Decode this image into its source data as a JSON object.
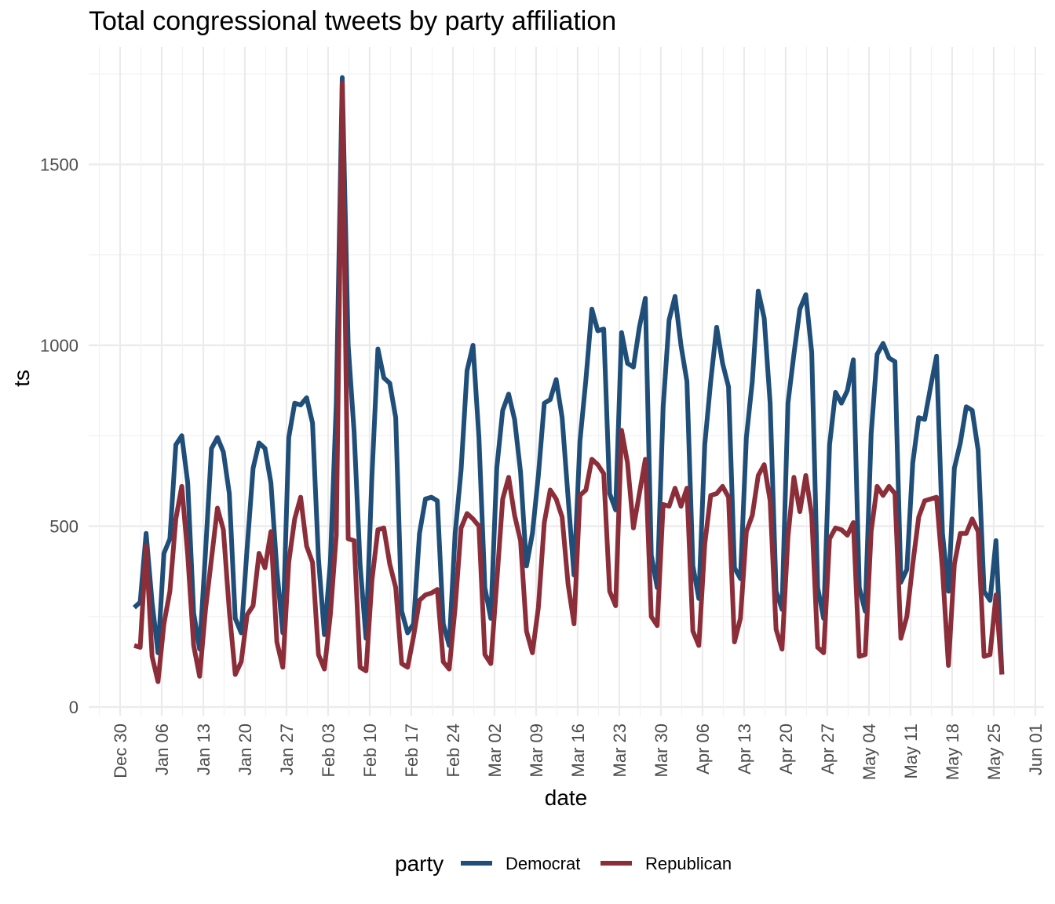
{
  "chart_data": {
    "type": "line",
    "title": "Total congressional tweets by party affiliation",
    "xlabel": "date",
    "ylabel": "ts",
    "x_start": "2018-01-02",
    "x_range": [
      "Dec 30",
      "Jun 01"
    ],
    "ylim": [
      0,
      1800
    ],
    "y_ticks": [
      0,
      500,
      1000,
      1500
    ],
    "x_ticks": [
      "Dec 30",
      "Jan 06",
      "Jan 13",
      "Jan 20",
      "Jan 27",
      "Feb 03",
      "Feb 10",
      "Feb 17",
      "Feb 24",
      "Mar 02",
      "Mar 09",
      "Mar 16",
      "Mar 23",
      "Mar 30",
      "Apr 06",
      "Apr 13",
      "Apr 20",
      "Apr 27",
      "May 04",
      "May 11",
      "May 18",
      "May 25",
      "Jun 01"
    ],
    "grid": true,
    "legend_title": "party",
    "legend_position": "bottom",
    "series": [
      {
        "name": "Democrat",
        "color": "#1f4e79",
        "values": [
          275,
          290,
          480,
          290,
          150,
          425,
          465,
          725,
          750,
          620,
          260,
          160,
          430,
          715,
          745,
          705,
          590,
          245,
          205,
          440,
          660,
          730,
          715,
          620,
          380,
          205,
          745,
          840,
          835,
          855,
          785,
          410,
          200,
          400,
          840,
          1740,
          1000,
          760,
          395,
          190,
          640,
          990,
          910,
          895,
          800,
          265,
          205,
          230,
          480,
          575,
          580,
          570,
          230,
          170,
          480,
          655,
          930,
          1000,
          745,
          330,
          245,
          660,
          820,
          865,
          795,
          650,
          390,
          480,
          640,
          840,
          850,
          905,
          800,
          580,
          365,
          735,
          905,
          1100,
          1040,
          1045,
          590,
          545,
          1035,
          950,
          940,
          1050,
          1130,
          420,
          330,
          830,
          1070,
          1135,
          1000,
          900,
          390,
          300,
          725,
          900,
          1050,
          950,
          885,
          385,
          355,
          745,
          900,
          1150,
          1075,
          840,
          320,
          270,
          840,
          975,
          1100,
          1140,
          980,
          330,
          245,
          725,
          870,
          840,
          875,
          960,
          330,
          265,
          755,
          975,
          1005,
          965,
          955,
          345,
          380,
          675,
          800,
          795,
          885,
          970,
          480,
          320,
          660,
          730,
          830,
          820,
          710,
          320,
          295,
          460,
          90
        ]
      },
      {
        "name": "Republican",
        "color": "#8b2e3a",
        "values": [
          170,
          165,
          445,
          140,
          70,
          230,
          320,
          520,
          610,
          420,
          170,
          85,
          270,
          410,
          550,
          490,
          265,
          90,
          125,
          255,
          280,
          425,
          385,
          485,
          180,
          110,
          400,
          520,
          580,
          445,
          400,
          145,
          105,
          255,
          475,
          1725,
          465,
          460,
          110,
          100,
          350,
          490,
          495,
          395,
          330,
          120,
          110,
          195,
          295,
          310,
          315,
          325,
          125,
          105,
          275,
          495,
          535,
          520,
          500,
          145,
          120,
          345,
          575,
          635,
          530,
          460,
          210,
          150,
          275,
          510,
          600,
          575,
          525,
          340,
          230,
          585,
          600,
          685,
          670,
          645,
          320,
          280,
          765,
          675,
          495,
          590,
          685,
          250,
          225,
          560,
          555,
          605,
          555,
          605,
          210,
          170,
          450,
          585,
          590,
          610,
          580,
          180,
          245,
          485,
          530,
          640,
          670,
          570,
          215,
          160,
          470,
          635,
          540,
          640,
          530,
          165,
          150,
          465,
          495,
          490,
          475,
          510,
          140,
          145,
          485,
          610,
          585,
          610,
          590,
          190,
          250,
          395,
          525,
          570,
          575,
          580,
          380,
          115,
          395,
          480,
          480,
          520,
          485,
          140,
          145,
          310,
          90
        ]
      }
    ]
  }
}
